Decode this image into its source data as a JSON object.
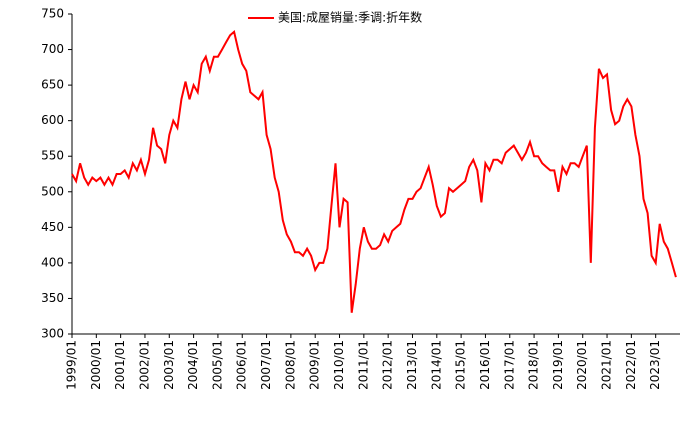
{
  "chart_data": {
    "type": "line",
    "categories": [
      "1999/01",
      null,
      null,
      null,
      null,
      null,
      "2000/01",
      null,
      null,
      null,
      null,
      null,
      "2001/01",
      null,
      null,
      null,
      null,
      null,
      "2002/01",
      null,
      null,
      null,
      null,
      null,
      "2003/01",
      null,
      null,
      null,
      null,
      null,
      "2004/01",
      null,
      null,
      null,
      null,
      null,
      "2005/01",
      null,
      null,
      null,
      null,
      null,
      "2006/01",
      null,
      null,
      null,
      null,
      null,
      "2007/01",
      null,
      null,
      null,
      null,
      null,
      "2008/01",
      null,
      null,
      null,
      null,
      null,
      "2009/01",
      null,
      null,
      null,
      null,
      null,
      "2010/01",
      null,
      null,
      null,
      null,
      null,
      "2011/01",
      null,
      null,
      null,
      null,
      null,
      "2012/01",
      null,
      null,
      null,
      null,
      null,
      "2013/01",
      null,
      null,
      null,
      null,
      null,
      "2014/01",
      null,
      null,
      null,
      null,
      null,
      "2015/01",
      null,
      null,
      null,
      null,
      null,
      "2016/01",
      null,
      null,
      null,
      null,
      null,
      "2017/01",
      null,
      null,
      null,
      null,
      null,
      "2018/01",
      null,
      null,
      null,
      null,
      null,
      "2019/01",
      null,
      null,
      null,
      null,
      null,
      "2020/01",
      null,
      null,
      null,
      null,
      null,
      "2021/01",
      null,
      null,
      null,
      null,
      null,
      "2022/01",
      null,
      null,
      null,
      null,
      null,
      "2023/01",
      null,
      null,
      null,
      null,
      null
    ],
    "series": [
      {
        "name": "美国:成屋销量:季调:折年数",
        "color": "#ff0000",
        "values": [
          525,
          515,
          540,
          520,
          510,
          520,
          515,
          520,
          510,
          520,
          510,
          525,
          525,
          530,
          520,
          540,
          530,
          545,
          525,
          545,
          590,
          565,
          560,
          540,
          580,
          600,
          590,
          630,
          655,
          630,
          650,
          640,
          680,
          690,
          670,
          690,
          690,
          700,
          710,
          720,
          725,
          700,
          680,
          670,
          640,
          635,
          630,
          640,
          580,
          560,
          520,
          500,
          460,
          440,
          430,
          415,
          415,
          410,
          420,
          410,
          390,
          400,
          400,
          420,
          480,
          540,
          450,
          490,
          485,
          330,
          370,
          420,
          450,
          430,
          420,
          420,
          425,
          440,
          430,
          445,
          450,
          455,
          475,
          490,
          490,
          500,
          505,
          520,
          535,
          510,
          480,
          465,
          470,
          505,
          500,
          505,
          510,
          515,
          535,
          545,
          530,
          485,
          540,
          530,
          545,
          545,
          540,
          555,
          560,
          565,
          555,
          545,
          555,
          570,
          550,
          550,
          540,
          535,
          530,
          530,
          500,
          535,
          525,
          540,
          540,
          535,
          550,
          565,
          400,
          590,
          673,
          660,
          665,
          615,
          595,
          600,
          620,
          630,
          620,
          580,
          550,
          490,
          470,
          410,
          400,
          455,
          430,
          420,
          400,
          380
        ]
      }
    ],
    "ylim": [
      300,
      750
    ],
    "yticks": [
      300,
      350,
      400,
      450,
      500,
      550,
      600,
      650,
      700,
      750
    ],
    "legend": "top"
  }
}
